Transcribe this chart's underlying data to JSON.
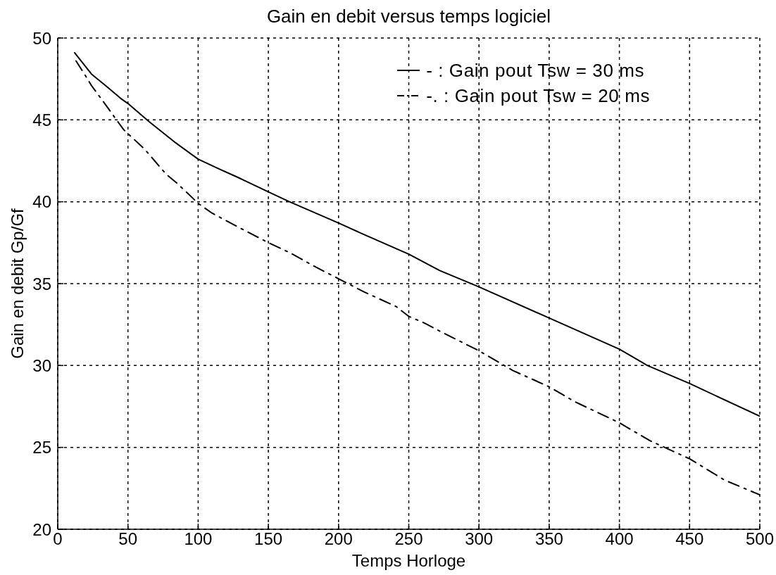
{
  "chart_data": {
    "type": "line",
    "title": "Gain en debit versus temps logiciel",
    "xlabel": "Temps Horloge",
    "ylabel": "Gain en debit Gp/Gf",
    "series": [
      {
        "name": "- : Gain pout Tsw = 30 ms",
        "color": "#000000",
        "line_style": "solid",
        "x": [
          12,
          24,
          34,
          45,
          50,
          65,
          84,
          100,
          115,
          128,
          150,
          165,
          200,
          218,
          250,
          272,
          300,
          350,
          400,
          420,
          450,
          500
        ],
        "values": [
          49.1,
          47.8,
          47.1,
          46.3,
          46.0,
          44.9,
          43.6,
          42.6,
          42.0,
          41.5,
          40.6,
          40.0,
          38.7,
          38.0,
          36.8,
          35.8,
          34.8,
          32.9,
          31.0,
          30.0,
          28.9,
          26.9
        ]
      },
      {
        "name": "-. : Gain pout Tsw = 20 ms",
        "color": "#000000",
        "line_style": "dashdot",
        "x": [
          13,
          19,
          24,
          30,
          36,
          41,
          47,
          62,
          69,
          77,
          84,
          94,
          100,
          110,
          132,
          150,
          165,
          184,
          200,
          218,
          241,
          250,
          261,
          272,
          300,
          324,
          350,
          368,
          400,
          422,
          450,
          475,
          500
        ],
        "values": [
          48.6,
          47.8,
          47.1,
          46.4,
          45.7,
          45.1,
          44.4,
          43.2,
          42.5,
          41.7,
          41.2,
          40.4,
          39.9,
          39.3,
          38.3,
          37.5,
          36.9,
          36.0,
          35.3,
          34.5,
          33.6,
          33.0,
          32.6,
          32.1,
          30.9,
          29.7,
          28.7,
          27.8,
          26.5,
          25.4,
          24.3,
          23.0,
          22.1
        ]
      }
    ],
    "xlim": [
      0,
      500
    ],
    "ylim": [
      20,
      50
    ],
    "xticks": [
      0,
      50,
      100,
      150,
      200,
      250,
      300,
      350,
      400,
      450,
      500
    ],
    "yticks": [
      20,
      25,
      30,
      35,
      40,
      45,
      50
    ],
    "grid": true,
    "legend": "top right"
  }
}
